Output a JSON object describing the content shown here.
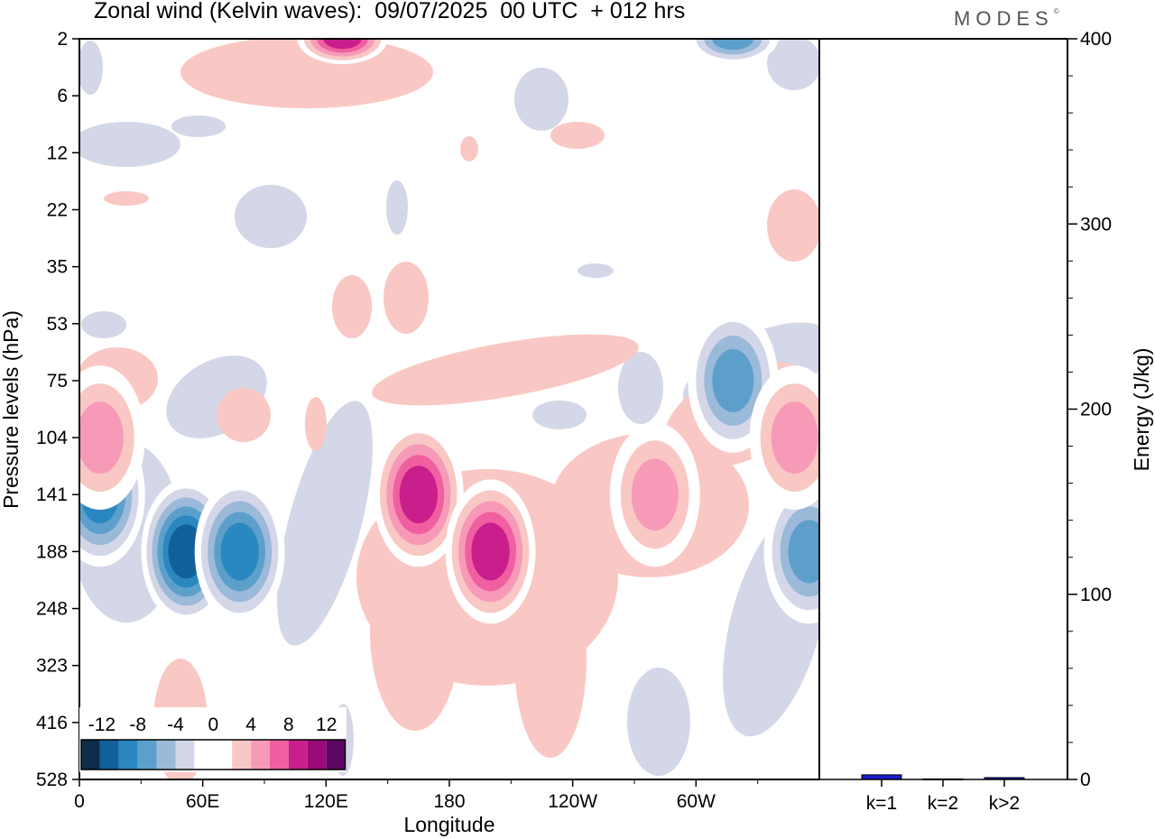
{
  "title": "Zonal wind (Kelvin waves):  09/07/2025  00 UTC  + 012 hrs",
  "brand": "MODES",
  "brand_mark": "©",
  "chart_data": [
    {
      "type": "heatmap",
      "title": "Zonal wind (Kelvin waves):  09/07/2025  00 UTC  + 012 hrs",
      "xlabel": "Longitude",
      "ylabel": "Pressure levels (hPa)",
      "x_ticks": [
        {
          "lon": 0,
          "label": "0"
        },
        {
          "lon": 60,
          "label": "60E"
        },
        {
          "lon": 120,
          "label": "120E"
        },
        {
          "lon": 180,
          "label": "180"
        },
        {
          "lon": 240,
          "label": "120W"
        },
        {
          "lon": 300,
          "label": "60W"
        }
      ],
      "xlim": [
        0,
        360
      ],
      "y_ticks": [
        "2",
        "6",
        "12",
        "22",
        "35",
        "53",
        "75",
        "104",
        "141",
        "188",
        "248",
        "323",
        "416",
        "528"
      ],
      "y_scale": "categorical-levels",
      "colorbar": {
        "labels": [
          "-12",
          "-8",
          "-4",
          "0",
          "4",
          "8",
          "12"
        ],
        "colors": [
          "#0d2c4a",
          "#12609b",
          "#2a87c0",
          "#5d9fcb",
          "#9bb9d9",
          "#d4d7e8",
          "#ffffff",
          "#ffffff",
          "#f9c8c4",
          "#f79ab8",
          "#f060a0",
          "#c81f8c",
          "#9a0b78",
          "#5c0763"
        ]
      },
      "features": [
        {
          "type": "wind",
          "sign": "negative",
          "lon": 10,
          "level": "141",
          "peak": -10
        },
        {
          "type": "wind",
          "sign": "negative",
          "lon": 52,
          "level": "188",
          "peak": -12
        },
        {
          "type": "wind",
          "sign": "negative",
          "lon": 78,
          "level": "188",
          "peak": -9
        },
        {
          "type": "wind",
          "sign": "negative",
          "lon": 355,
          "level": "188",
          "peak": -8
        },
        {
          "type": "wind",
          "sign": "negative",
          "lon": 318,
          "level": "75",
          "peak": -7
        },
        {
          "type": "wind",
          "sign": "negative",
          "lon": 318,
          "level": "2",
          "peak": -7
        },
        {
          "type": "wind",
          "sign": "positive",
          "lon": 165,
          "level": "141",
          "peak": 9
        },
        {
          "type": "wind",
          "sign": "positive",
          "lon": 200,
          "level": "188",
          "peak": 9
        },
        {
          "type": "wind",
          "sign": "positive",
          "lon": 280,
          "level": "141",
          "peak": 6
        },
        {
          "type": "wind",
          "sign": "positive",
          "lon": 348,
          "level": "104",
          "peak": 6
        },
        {
          "type": "wind",
          "sign": "positive",
          "lon": 128,
          "level": "2",
          "peak": 10
        },
        {
          "type": "wind",
          "sign": "positive",
          "lon": 10,
          "level": "104",
          "peak": 6
        }
      ]
    },
    {
      "type": "bar",
      "categories": [
        "k=1",
        "k=2",
        "k>2"
      ],
      "values": [
        2.5,
        0.3,
        1.0
      ],
      "ylabel": "Energy (J/kg)",
      "ylim": [
        0,
        400
      ],
      "y_ticks": [
        0,
        100,
        200,
        300,
        400
      ],
      "bar_colors": [
        "#1a1acc",
        "#1a1acc",
        "#1a1acc"
      ]
    }
  ]
}
